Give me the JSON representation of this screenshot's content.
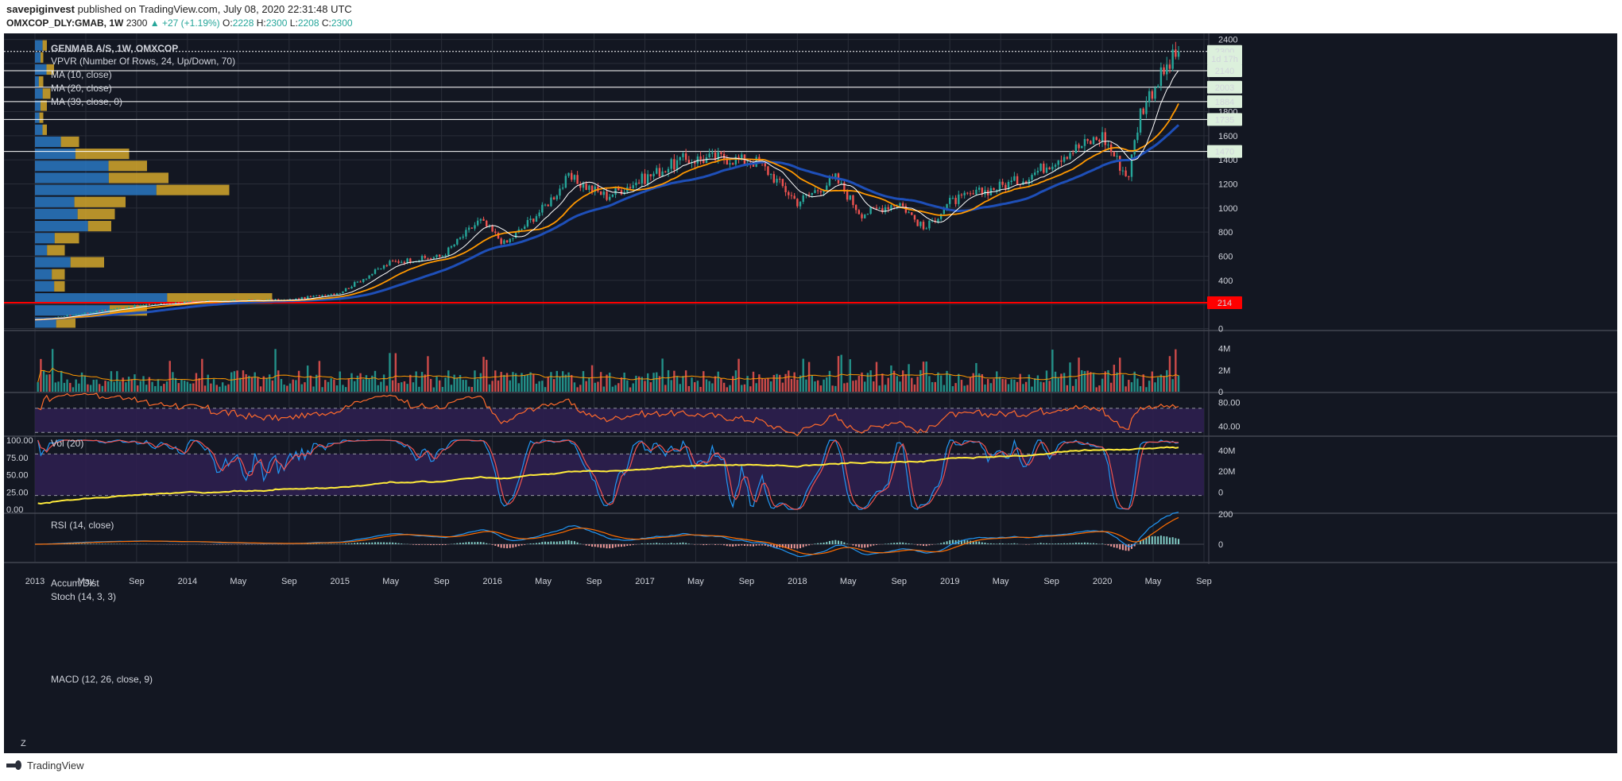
{
  "header": {
    "publisher": "savepiginvest",
    "published_text": "published on TradingView.com, July 08, 2020 22:31:48 UTC",
    "symbol": "OMXCOP_DLY:GMAB, 1W",
    "last_price": "2300",
    "change": "▲ +27 (+1.19%)",
    "o_label": "O:",
    "open": "2228",
    "h_label": "H:",
    "high": "2300",
    "l_label": "L:",
    "low": "2208",
    "c_label": "C:",
    "close": "2300"
  },
  "legend": {
    "title": "GENMAB A/S, 1W, OMXCOP",
    "vpvr": "VPVR (Number Of Rows, 24, Up/Down, 70)",
    "ma10": "MA (10, close)",
    "ma20": "MA (20, close)",
    "ma39": "MA (39, close, 0)"
  },
  "panes": {
    "vol_label": "Vol (20)",
    "rsi_label": "RSI (14, close)",
    "ad_label": "Accum/Dist",
    "stoch_label": "Stoch (14, 3, 3)",
    "macd_label": "MACD (12, 26, close, 9)"
  },
  "price_badges": [
    {
      "label": "2300",
      "value": 2300,
      "color": "#dcf0dc"
    },
    {
      "label": "1d 17h",
      "value": 2240,
      "color": "#dcf0dc"
    },
    {
      "label": "2140",
      "value": 2140,
      "color": "#dcf0dc"
    },
    {
      "label": "2003",
      "value": 2003,
      "color": "#dcf0dc"
    },
    {
      "label": "1884",
      "value": 1884,
      "color": "#dcf0dc"
    },
    {
      "label": "1735",
      "value": 1735,
      "color": "#dcf0dc"
    },
    {
      "label": "1470",
      "value": 1470,
      "color": "#dcf0dc"
    },
    {
      "label": "214",
      "value": 214,
      "color": "#ff0000"
    }
  ],
  "horizontal_levels": [
    2300,
    2140,
    2003,
    1884,
    1735,
    1470,
    214
  ],
  "support_level": 214,
  "footer": {
    "brand": "TradingView",
    "corner_letter": "Z"
  },
  "colors": {
    "background": "#131722",
    "up": "#26a69a",
    "down": "#ef5350",
    "ma10": "#ffffff",
    "ma20": "#ff9800",
    "ma39": "#1e4fb8",
    "vpvr_up": "#2a78c2",
    "vpvr_down": "#d4a72c",
    "rsi": "#ff6a2b",
    "ad": "#ffeb3b",
    "stoch_k": "#2196f3",
    "stoch_d": "#ef5350",
    "macd": "#2196f3",
    "signal": "#ff6d00",
    "band": "#2e1f4f"
  },
  "chart_data": [
    {
      "type": "candlestick",
      "title": "GENMAB A/S, 1W, OMXCOP",
      "x_ticks": [
        "2013",
        "May",
        "Sep",
        "2014",
        "May",
        "Sep",
        "2015",
        "May",
        "Sep",
        "2016",
        "May",
        "Sep",
        "2017",
        "May",
        "Sep",
        "2018",
        "May",
        "Sep",
        "2019",
        "May",
        "Sep",
        "2020",
        "May",
        "Sep"
      ],
      "y_ticks": [
        0,
        200,
        400,
        600,
        800,
        1000,
        1200,
        1400,
        1600,
        1800,
        2000,
        2200,
        2400
      ],
      "ylim": [
        -10,
        2450
      ],
      "close_path": [
        {
          "date": "2013-01",
          "close": 70
        },
        {
          "date": "2013-05",
          "close": 130
        },
        {
          "date": "2013-09",
          "close": 190
        },
        {
          "date": "2014-01",
          "close": 220
        },
        {
          "date": "2014-05",
          "close": 230
        },
        {
          "date": "2014-09",
          "close": 235
        },
        {
          "date": "2015-01",
          "close": 300
        },
        {
          "date": "2015-05",
          "close": 550
        },
        {
          "date": "2015-09",
          "close": 600
        },
        {
          "date": "2015-12",
          "close": 900
        },
        {
          "date": "2016-02",
          "close": 700
        },
        {
          "date": "2016-05",
          "close": 1000
        },
        {
          "date": "2016-07",
          "close": 1250
        },
        {
          "date": "2016-10",
          "close": 1100
        },
        {
          "date": "2017-01",
          "close": 1250
        },
        {
          "date": "2017-04",
          "close": 1400
        },
        {
          "date": "2017-07",
          "close": 1420
        },
        {
          "date": "2017-10",
          "close": 1380
        },
        {
          "date": "2018-01",
          "close": 1050
        },
        {
          "date": "2018-04",
          "close": 1250
        },
        {
          "date": "2018-06",
          "close": 950
        },
        {
          "date": "2018-09",
          "close": 1050
        },
        {
          "date": "2018-11",
          "close": 820
        },
        {
          "date": "2019-01",
          "close": 1050
        },
        {
          "date": "2019-04",
          "close": 1150
        },
        {
          "date": "2019-07",
          "close": 1250
        },
        {
          "date": "2019-10",
          "close": 1450
        },
        {
          "date": "2020-01",
          "close": 1600
        },
        {
          "date": "2020-03",
          "close": 1250
        },
        {
          "date": "2020-04",
          "close": 1800
        },
        {
          "date": "2020-05",
          "close": 2000
        },
        {
          "date": "2020-06",
          "close": 2150
        },
        {
          "date": "2020-07",
          "close": 2300
        }
      ],
      "last": {
        "open": 2228,
        "high": 2300,
        "low": 2208,
        "close": 2300
      }
    },
    {
      "type": "bar",
      "name": "Vol (20)",
      "y_ticks": [
        "0",
        "2M",
        "4M"
      ],
      "ylim": [
        0,
        5000000
      ]
    },
    {
      "type": "line",
      "name": "RSI (14, close)",
      "y_ticks": [
        40,
        80
      ],
      "bands": [
        30,
        70
      ]
    },
    {
      "type": "line",
      "name": "Accum/Dist",
      "y_ticks": [
        "0",
        "20M",
        "40M"
      ]
    },
    {
      "type": "line",
      "name": "Stoch (14, 3, 3)",
      "y_ticks": [
        "0.00",
        "25.00",
        "50.00",
        "75.00",
        "100.00"
      ],
      "ylim": [
        0,
        100
      ],
      "bands": [
        20,
        80
      ]
    },
    {
      "type": "line",
      "name": "MACD (12, 26, close, 9)",
      "y_ticks": [
        0,
        200
      ]
    }
  ]
}
